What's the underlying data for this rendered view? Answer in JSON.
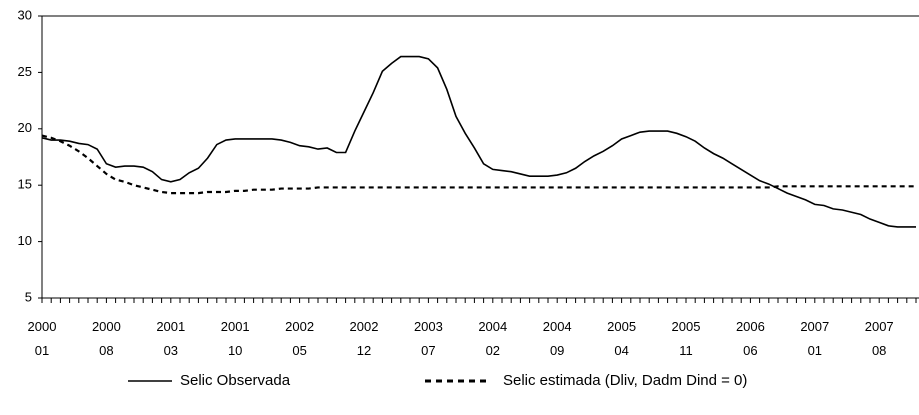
{
  "chart_data": {
    "type": "line",
    "categories": [
      "2000 01",
      null,
      null,
      null,
      null,
      null,
      null,
      "2000 08",
      null,
      null,
      null,
      null,
      null,
      null,
      "2001 03",
      null,
      null,
      null,
      null,
      null,
      null,
      "2001 10",
      null,
      null,
      null,
      null,
      null,
      null,
      "2002 05",
      null,
      null,
      null,
      null,
      null,
      null,
      "2002 12",
      null,
      null,
      null,
      null,
      null,
      null,
      "2003 07",
      null,
      null,
      null,
      null,
      null,
      null,
      "2004 02",
      null,
      null,
      null,
      null,
      null,
      null,
      "2004 09",
      null,
      null,
      null,
      null,
      null,
      null,
      "2005 04",
      null,
      null,
      null,
      null,
      null,
      null,
      "2005 11",
      null,
      null,
      null,
      null,
      null,
      null,
      "2006 06",
      null,
      null,
      null,
      null,
      null,
      null,
      "2007 01",
      null,
      null,
      null,
      null,
      null,
      null,
      "2007 08",
      null,
      null,
      null,
      null
    ],
    "series": [
      {
        "name": "Selic Observada",
        "color": "#000000",
        "linestyle": "solid",
        "values": [
          19.2,
          19.0,
          19.0,
          18.9,
          18.7,
          18.6,
          18.2,
          16.9,
          16.6,
          16.7,
          16.7,
          16.6,
          16.2,
          15.5,
          15.3,
          15.5,
          16.1,
          16.5,
          17.4,
          18.6,
          19.0,
          19.1,
          19.1,
          19.1,
          19.1,
          19.1,
          19.0,
          18.8,
          18.5,
          18.4,
          18.2,
          18.3,
          17.9,
          17.9,
          19.8,
          21.5,
          23.2,
          25.1,
          25.8,
          26.4,
          26.4,
          26.4,
          26.2,
          25.4,
          23.5,
          21.1,
          19.6,
          18.3,
          16.9,
          16.4,
          16.3,
          16.2,
          16.0,
          15.8,
          15.8,
          15.8,
          15.9,
          16.1,
          16.5,
          17.1,
          17.6,
          18.0,
          18.5,
          19.1,
          19.4,
          19.7,
          19.8,
          19.8,
          19.8,
          19.6,
          19.3,
          18.9,
          18.3,
          17.8,
          17.4,
          16.9,
          16.4,
          15.9,
          15.4,
          15.1,
          14.7,
          14.3,
          14.0,
          13.7,
          13.3,
          13.2,
          12.9,
          12.8,
          12.6,
          12.4,
          12.0,
          11.7,
          11.4,
          11.3,
          11.3,
          11.3
        ]
      },
      {
        "name": "Selic estimada (Dliv, Dadm Dind = 0)",
        "color": "#000000",
        "linestyle": "dashed",
        "values": [
          19.4,
          19.2,
          18.9,
          18.5,
          18.0,
          17.4,
          16.7,
          16.0,
          15.5,
          15.3,
          15.0,
          14.8,
          14.6,
          14.4,
          14.3,
          14.3,
          14.3,
          14.3,
          14.4,
          14.4,
          14.4,
          14.5,
          14.5,
          14.6,
          14.6,
          14.6,
          14.7,
          14.7,
          14.7,
          14.7,
          14.8,
          14.8,
          14.8,
          14.8,
          14.8,
          14.8,
          14.8,
          14.8,
          14.8,
          14.8,
          14.8,
          14.8,
          14.8,
          14.8,
          14.8,
          14.8,
          14.8,
          14.8,
          14.8,
          14.8,
          14.8,
          14.8,
          14.8,
          14.8,
          14.8,
          14.8,
          14.8,
          14.8,
          14.8,
          14.8,
          14.8,
          14.8,
          14.8,
          14.8,
          14.8,
          14.8,
          14.8,
          14.8,
          14.8,
          14.8,
          14.8,
          14.8,
          14.8,
          14.8,
          14.8,
          14.8,
          14.8,
          14.8,
          14.8,
          14.8,
          14.9,
          14.9,
          14.9,
          14.9,
          14.9,
          14.9,
          14.9,
          14.9,
          14.9,
          14.9,
          14.9,
          14.9,
          14.9,
          14.9,
          14.9,
          14.9
        ]
      }
    ],
    "ylim": [
      5,
      30
    ],
    "yticks": [
      5,
      10,
      15,
      20,
      25,
      30
    ],
    "grid": false
  }
}
